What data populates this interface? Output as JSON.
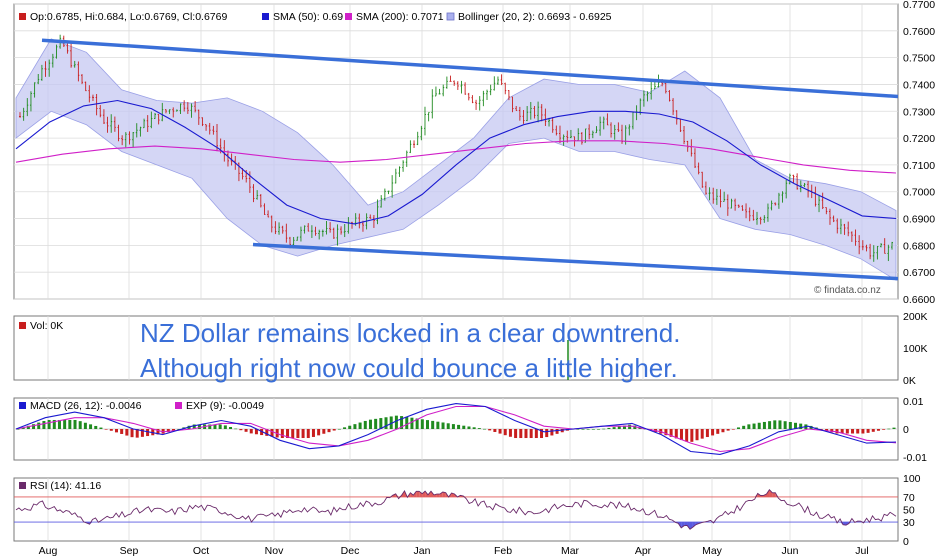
{
  "legend": {
    "ohlc": "Op:0.6785, Hi:0.684, Lo:0.6769, Cl:0.6769",
    "sma50": "SMA (50): 0.69",
    "sma200": "SMA (200): 0.7071",
    "bollinger": "Bollinger (20, 2): 0.6693 - 0.6925",
    "volume": "Vol: 0K",
    "macd": "MACD (26, 12): -0.0046",
    "exp": "EXP (9): -0.0049",
    "rsi": "RSI (14): 41.16"
  },
  "annotation": {
    "line1": "NZ Dollar remains locked in a clear downtrend.",
    "line2": "Although right now could bounce a little higher."
  },
  "watermark": "© findata.co.nz",
  "colors": {
    "up": "#1f8a1f",
    "down": "#c81e1e",
    "sma50": "#1a1ad0",
    "sma200": "#d020c8",
    "band": "#c6c8f2",
    "channel": "#3a6fd8",
    "macd": "#1a1ad0",
    "signal": "#d020c8",
    "rsi": "#6a2a6a",
    "rsiHigh": "#e05a5a",
    "rsiLow": "#5a5ae0"
  },
  "chart_data": [
    {
      "type": "line",
      "panel": "price",
      "months": [
        "Aug",
        "Sep",
        "Oct",
        "Nov",
        "Dec",
        "Jan",
        "Feb",
        "Mar",
        "Apr",
        "May",
        "Jun",
        "Jul"
      ],
      "yticks": [
        "0.7700",
        "0.7600",
        "0.7500",
        "0.7400",
        "0.7300",
        "0.7200",
        "0.7100",
        "0.7000",
        "0.6900",
        "0.6800",
        "0.6700",
        "0.6600"
      ],
      "ylim": [
        0.66,
        0.77
      ],
      "price_path": [
        0.728,
        0.745,
        0.756,
        0.74,
        0.727,
        0.72,
        0.725,
        0.73,
        0.733,
        0.725,
        0.712,
        0.703,
        0.688,
        0.682,
        0.687,
        0.684,
        0.688,
        0.69,
        0.705,
        0.72,
        0.736,
        0.742,
        0.733,
        0.742,
        0.728,
        0.73,
        0.722,
        0.72,
        0.726,
        0.72,
        0.735,
        0.741,
        0.72,
        0.699,
        0.696,
        0.691,
        0.692,
        0.705,
        0.7,
        0.69,
        0.684,
        0.677,
        0.68
      ],
      "sma50_path": [
        0.716,
        0.726,
        0.732,
        0.734,
        0.731,
        0.724,
        0.716,
        0.705,
        0.695,
        0.69,
        0.688,
        0.691,
        0.699,
        0.71,
        0.72,
        0.725,
        0.728,
        0.73,
        0.73,
        0.729,
        0.726,
        0.719,
        0.71,
        0.703,
        0.697,
        0.691,
        0.69
      ],
      "sma200_path": [
        0.711,
        0.714,
        0.716,
        0.717,
        0.716,
        0.714,
        0.712,
        0.711,
        0.712,
        0.714,
        0.716,
        0.718,
        0.719,
        0.719,
        0.718,
        0.716,
        0.713,
        0.71,
        0.708,
        0.707
      ],
      "bollinger_upper": [
        0.735,
        0.757,
        0.752,
        0.738,
        0.734,
        0.733,
        0.735,
        0.73,
        0.722,
        0.71,
        0.695,
        0.7,
        0.71,
        0.72,
        0.735,
        0.742,
        0.74,
        0.74,
        0.737,
        0.745,
        0.735,
        0.712,
        0.705,
        0.703,
        0.7,
        0.693
      ],
      "bollinger_lower": [
        0.72,
        0.73,
        0.725,
        0.715,
        0.71,
        0.705,
        0.69,
        0.68,
        0.676,
        0.68,
        0.683,
        0.686,
        0.695,
        0.705,
        0.718,
        0.72,
        0.715,
        0.715,
        0.712,
        0.71,
        0.69,
        0.686,
        0.684,
        0.68,
        0.675,
        0.667
      ],
      "channel_upper": [
        0.7565,
        0.7355
      ],
      "channel_lower": [
        0.6803,
        0.6676
      ]
    },
    {
      "type": "bar",
      "panel": "volume",
      "yticks": [
        "200K",
        "100K",
        "0K"
      ],
      "ylim": [
        0,
        200000
      ]
    },
    {
      "type": "line",
      "panel": "macd",
      "yticks": [
        "0.01",
        "0",
        "-0.01"
      ],
      "ylim": [
        -0.011,
        0.011
      ],
      "macd_path": [
        0.0,
        0.004,
        0.006,
        0.004,
        0.0,
        -0.002,
        0.001,
        0.003,
        0.001,
        -0.004,
        -0.007,
        -0.006,
        -0.002,
        0.003,
        0.007,
        0.009,
        0.008,
        0.003,
        -0.001,
        0.0,
        0.001,
        0.002,
        -0.002,
        -0.008,
        -0.009,
        -0.006,
        -0.001,
        0.001,
        -0.002,
        -0.005,
        -0.0046
      ],
      "signal_path": [
        0.0,
        0.002,
        0.004,
        0.004,
        0.002,
        -0.001,
        0.0,
        0.002,
        0.002,
        -0.002,
        -0.005,
        -0.006,
        -0.004,
        0.0,
        0.005,
        0.008,
        0.008,
        0.005,
        0.001,
        0.0,
        0.001,
        0.001,
        -0.001,
        -0.005,
        -0.008,
        -0.007,
        -0.003,
        0.0,
        -0.001,
        -0.004,
        -0.0049
      ]
    },
    {
      "type": "line",
      "panel": "rsi",
      "yticks": [
        "100",
        "70",
        "50",
        "30",
        "0"
      ],
      "ylim": [
        0,
        100
      ],
      "levels": [
        70,
        30
      ],
      "rsi_path": [
        50,
        58,
        45,
        30,
        40,
        50,
        46,
        55,
        48,
        35,
        40,
        52,
        45,
        56,
        62,
        75,
        78,
        70,
        58,
        50,
        45,
        55,
        60,
        58,
        52,
        40,
        20,
        32,
        55,
        78,
        60,
        42,
        28,
        35,
        41
      ]
    }
  ]
}
